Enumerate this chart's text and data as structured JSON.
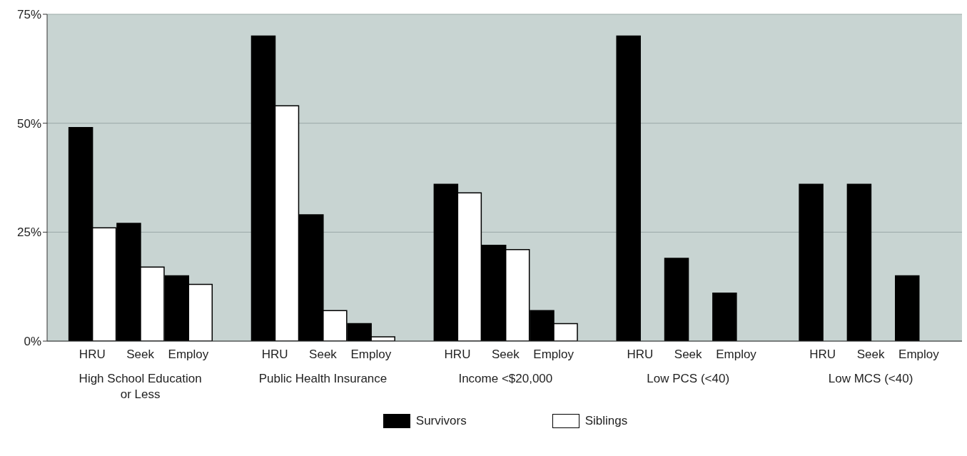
{
  "chart_data": {
    "type": "bar",
    "categories": [
      "HRU",
      "Seek",
      "Employ",
      "HRU",
      "Seek",
      "Employ",
      "HRU",
      "Seek",
      "Employ",
      "HRU",
      "Seek",
      "Employ",
      "HRU",
      "Seek",
      "Employ"
    ],
    "series": [
      {
        "name": "Survivors",
        "color": "#000000",
        "values": [
          49,
          27,
          15,
          70,
          29,
          4,
          36,
          22,
          7,
          70,
          19,
          11,
          36,
          36,
          15
        ]
      },
      {
        "name": "Siblings",
        "color": "#ffffff",
        "values": [
          26,
          17,
          13,
          54,
          7,
          1,
          34,
          21,
          4,
          null,
          null,
          null,
          null,
          null,
          null
        ]
      }
    ],
    "annotations": [
      "High School Education or Less",
      "Public Health Insurance",
      "Income <$20,000",
      "Low PCS (<40)",
      "Low MCS (<40)"
    ],
    "ylim": [
      0,
      75
    ],
    "yticks": [
      {
        "value": 0,
        "label": "0%"
      },
      {
        "value": 25,
        "label": "25%"
      },
      {
        "value": 50,
        "label": "50%"
      },
      {
        "value": 75,
        "label": "75%"
      }
    ],
    "grid": "y",
    "legend": "bottom"
  }
}
